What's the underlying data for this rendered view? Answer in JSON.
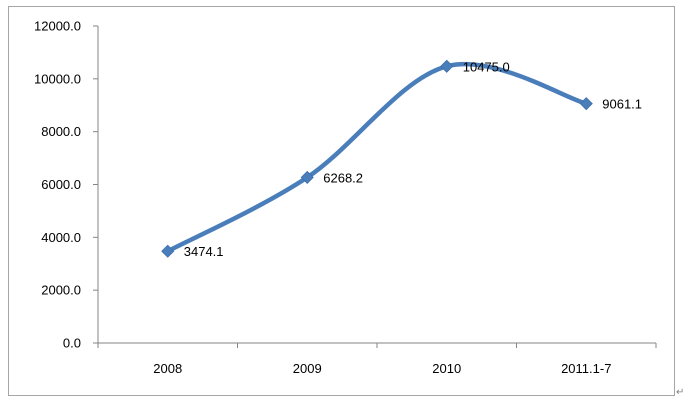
{
  "chart_data": {
    "type": "line",
    "categories": [
      "2008",
      "2009",
      "2010",
      "2011.1-7"
    ],
    "series": [
      {
        "values": [
          3474.1,
          6268.2,
          10475.0,
          9061.1
        ]
      }
    ],
    "data_labels": [
      "3474.1",
      "6268.2",
      "10475.0",
      "9061.1"
    ],
    "y_ticks": [
      "0.0",
      "2000.0",
      "4000.0",
      "6000.0",
      "8000.0",
      "10000.0",
      "12000.0"
    ],
    "ylim": [
      0,
      12000
    ],
    "title": "",
    "xlabel": "",
    "ylabel": "",
    "grid": false,
    "legend": "none",
    "smooth": true,
    "marker": "diamond",
    "colors": {
      "line": "#4a7ebb",
      "marker": "#4a7ebb",
      "axis": "#868686"
    }
  },
  "paragraph_mark": "↵"
}
